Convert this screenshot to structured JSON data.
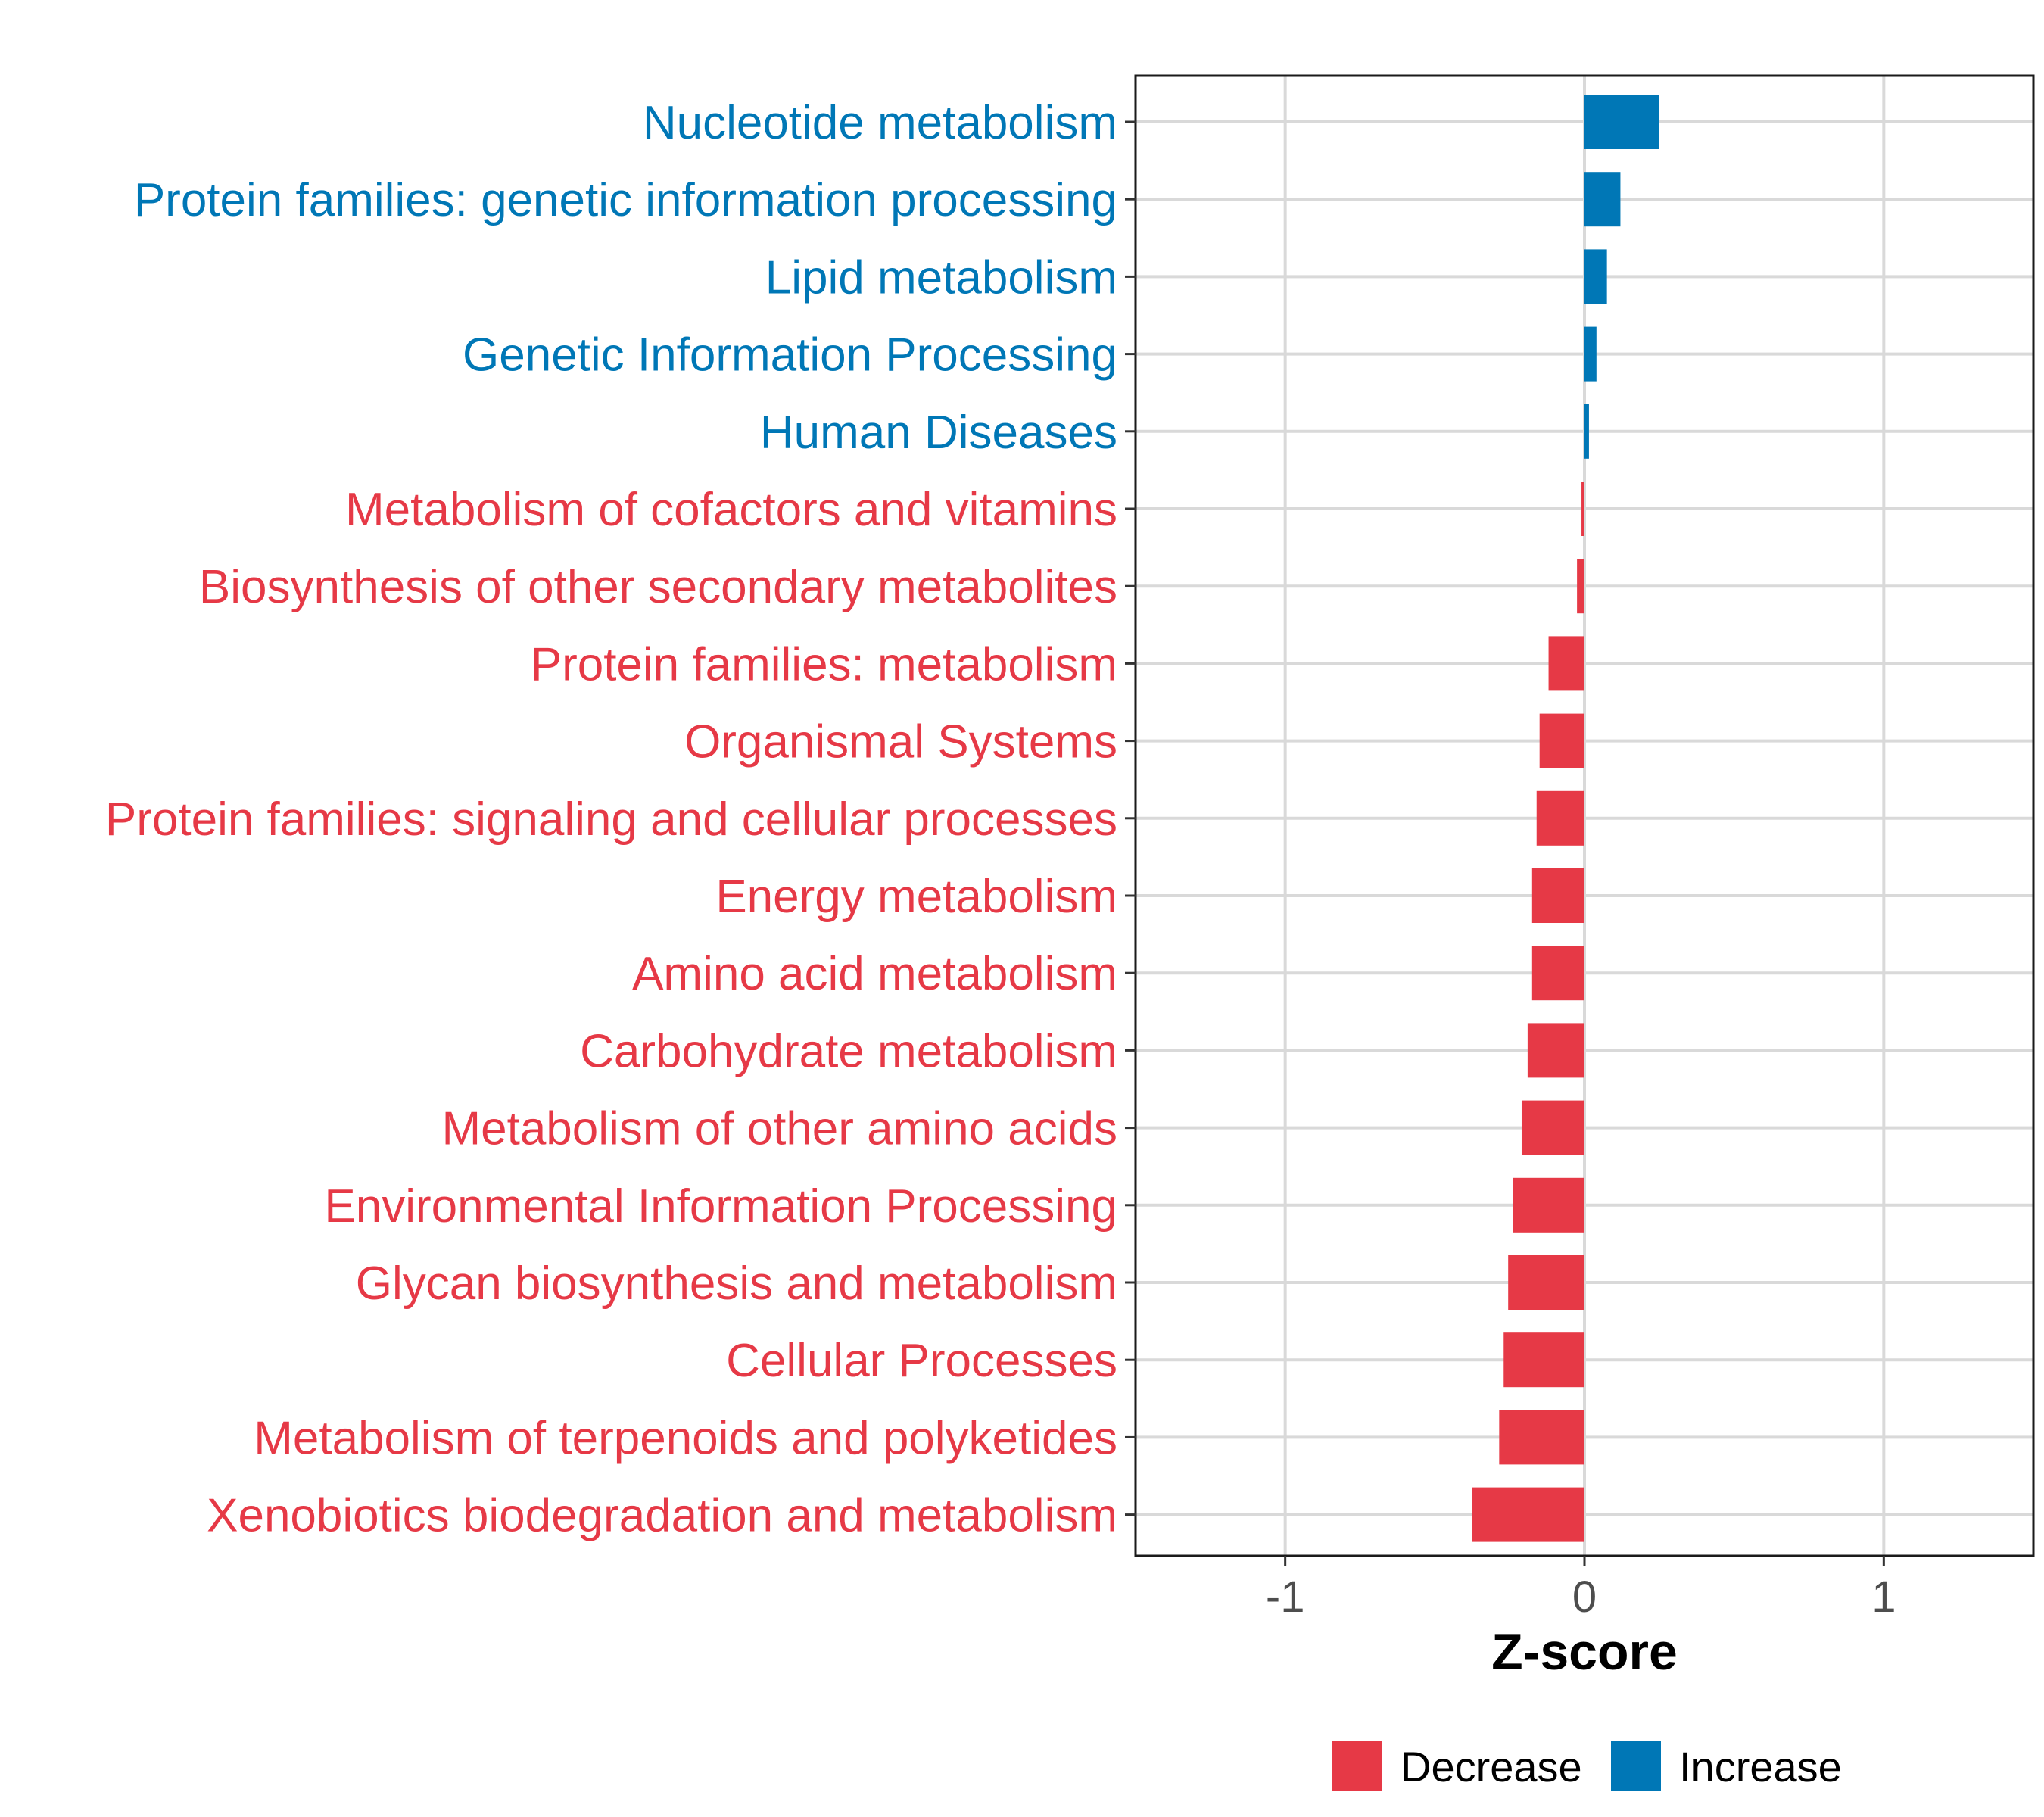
{
  "chart_data": {
    "type": "bar",
    "orientation": "horizontal",
    "title": "",
    "xlabel": "Z-score",
    "ylabel": "",
    "xlim": [
      -1.5,
      1.5
    ],
    "xticks": [
      -1,
      0,
      1
    ],
    "xtick_labels": [
      "-1",
      "0",
      "1"
    ],
    "grid": true,
    "legend_position": "bottom",
    "colors": {
      "Decrease": "#e63946",
      "Increase": "#0077b6"
    },
    "categories": [
      "Nucleotide metabolism",
      "Protein families: genetic information processing",
      "Lipid metabolism",
      "Genetic Information Processing",
      "Human Diseases",
      "Metabolism of cofactors and vitamins",
      "Biosynthesis of other secondary metabolites",
      "Protein families: metabolism",
      "Organismal Systems",
      "Protein families: signaling and cellular processes",
      "Energy metabolism",
      "Amino acid metabolism",
      "Carbohydrate metabolism",
      "Metabolism of other amino acids",
      "Environmental Information Processing",
      "Glycan biosynthesis and metabolism",
      "Cellular Processes",
      "Metabolism of terpenoids and polyketides",
      "Xenobiotics biodegradation and metabolism"
    ],
    "values": [
      0.25,
      0.12,
      0.075,
      0.04,
      0.015,
      -0.01,
      -0.025,
      -0.12,
      -0.15,
      -0.16,
      -0.175,
      -0.175,
      -0.19,
      -0.21,
      -0.24,
      -0.255,
      -0.27,
      -0.285,
      -0.375
    ],
    "groups": [
      "Increase",
      "Increase",
      "Increase",
      "Increase",
      "Increase",
      "Decrease",
      "Decrease",
      "Decrease",
      "Decrease",
      "Decrease",
      "Decrease",
      "Decrease",
      "Decrease",
      "Decrease",
      "Decrease",
      "Decrease",
      "Decrease",
      "Decrease",
      "Decrease"
    ],
    "legend": [
      "Decrease",
      "Increase"
    ]
  }
}
